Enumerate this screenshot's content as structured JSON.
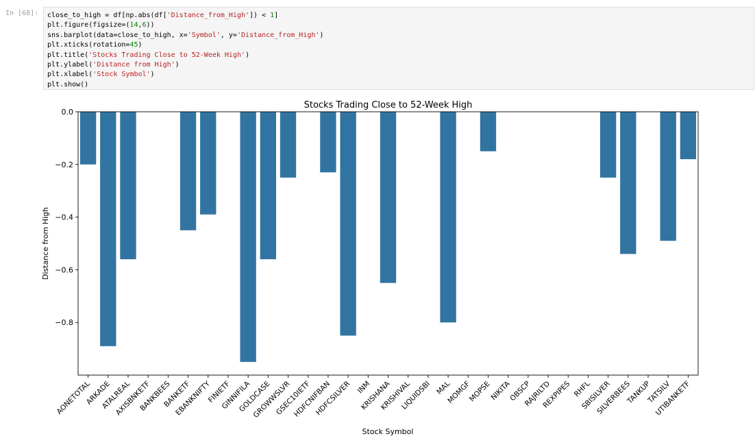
{
  "cell": {
    "prompt": "In [68]:",
    "code_lines": [
      [
        {
          "t": "close_to_high = df[np.abs(df[",
          "c": "o"
        },
        {
          "t": "'Distance_from_High'",
          "c": "s"
        },
        {
          "t": "]) < ",
          "c": "o"
        },
        {
          "t": "1",
          "c": "n"
        },
        {
          "t": "]",
          "c": "o"
        }
      ],
      [
        {
          "t": "plt.figure(figsize=(",
          "c": "o"
        },
        {
          "t": "14",
          "c": "n"
        },
        {
          "t": ",",
          "c": "o"
        },
        {
          "t": "6",
          "c": "n"
        },
        {
          "t": "))",
          "c": "o"
        }
      ],
      [
        {
          "t": "sns.barplot(data=close_to_high, x=",
          "c": "o"
        },
        {
          "t": "'Symbol'",
          "c": "s"
        },
        {
          "t": ", y=",
          "c": "o"
        },
        {
          "t": "'Distance_from_High'",
          "c": "s"
        },
        {
          "t": ")",
          "c": "o"
        }
      ],
      [
        {
          "t": "plt.xticks(rotation=",
          "c": "o"
        },
        {
          "t": "45",
          "c": "n"
        },
        {
          "t": ")",
          "c": "o"
        }
      ],
      [
        {
          "t": "plt.title(",
          "c": "o"
        },
        {
          "t": "'Stocks Trading Close to 52-Week High'",
          "c": "s"
        },
        {
          "t": ")",
          "c": "o"
        }
      ],
      [
        {
          "t": "plt.ylabel(",
          "c": "o"
        },
        {
          "t": "'Distance from High'",
          "c": "s"
        },
        {
          "t": ")",
          "c": "o"
        }
      ],
      [
        {
          "t": "plt.xlabel(",
          "c": "o"
        },
        {
          "t": "'Stock Symbol'",
          "c": "s"
        },
        {
          "t": ")",
          "c": "o"
        }
      ],
      [
        {
          "t": "plt.show()",
          "c": "o"
        }
      ]
    ]
  },
  "chart_data": {
    "type": "bar",
    "title": "Stocks Trading Close to 52-Week High",
    "xlabel": "Stock Symbol",
    "ylabel": "Distance from High",
    "ylim": [
      -1.0,
      0.0
    ],
    "yticks": [
      "0.0",
      "−0.2",
      "−0.4",
      "−0.6",
      "−0.8"
    ],
    "ytick_values": [
      0.0,
      -0.2,
      -0.4,
      -0.6,
      -0.8
    ],
    "bar_color": "#3274a1",
    "grid": false,
    "categories": [
      "AONETOTAL",
      "ARKADE",
      "ATALREAL",
      "AXISBNKETF",
      "BANKBEES",
      "BANKETF",
      "EBANKNIFTY",
      "FINIETF",
      "GINNIFILA",
      "GOLDCASE",
      "GROWWSLVR",
      "GSEC10IETF",
      "HDFCNIFBAN",
      "HDFCSILVER",
      "INM",
      "KRISHANA",
      "KRISHIVAL",
      "LIQUIDSBI",
      "MAL",
      "MOMGF",
      "MOPSE",
      "NIKITA",
      "OBSCP",
      "RAJRILTD",
      "REXPIPES",
      "RHFL",
      "SBISILVER",
      "SILVERBEES",
      "TANKUP",
      "TATSILV",
      "UTIBANKETF"
    ],
    "values": [
      -0.2,
      -0.89,
      -0.56,
      0,
      0,
      -0.45,
      -0.39,
      0,
      -0.95,
      -0.56,
      -0.25,
      0,
      -0.23,
      -0.85,
      0,
      -0.65,
      0,
      0,
      -0.8,
      0,
      -0.15,
      0,
      0,
      0,
      0,
      0,
      -0.25,
      -0.54,
      0,
      -0.49,
      -0.18
    ]
  }
}
